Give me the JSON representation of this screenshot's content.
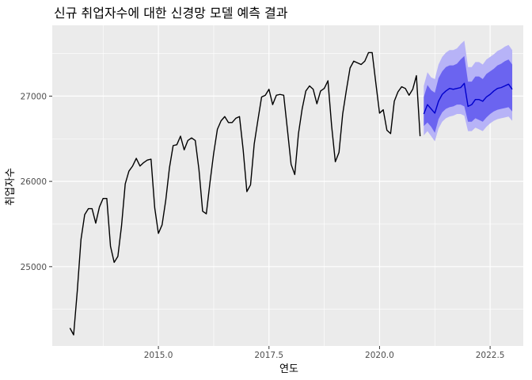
{
  "chart_data": {
    "type": "line",
    "title": "신규 취업자수에 대한 신경망 모델 예측 결과",
    "xlabel": "연도",
    "ylabel": "취업자수",
    "xlim": [
      2012.6,
      2023.25
    ],
    "ylim": [
      24070,
      27830
    ],
    "x_ticks": [
      2015,
      2017.5,
      2020,
      2022.5
    ],
    "x_tick_labels": [
      "2015.0",
      "2017.5",
      "2020.0",
      "2022.5"
    ],
    "y_ticks": [
      25000,
      26000,
      27000
    ],
    "y_tick_labels": [
      "25000",
      "26000",
      "27000"
    ],
    "grid": true,
    "legend": "none",
    "colors": {
      "panel": "#ebebeb",
      "grid": "#ffffff",
      "actual_line": "#000000",
      "forecast_line": "#0000cc",
      "band_80": "#6b64f0",
      "band_95": "#b7b3f7"
    },
    "series": [
      {
        "role": "actual",
        "start": [
          2013,
          1
        ],
        "frequency": 12,
        "values": [
          24280,
          24200,
          24720,
          25320,
          25610,
          25680,
          25680,
          25510,
          25700,
          25800,
          25800,
          25240,
          25050,
          25120,
          25480,
          25970,
          26120,
          26180,
          26270,
          26180,
          26220,
          26250,
          26260,
          25690,
          25390,
          25490,
          25780,
          26160,
          26420,
          26430,
          26530,
          26370,
          26480,
          26510,
          26480,
          26140,
          25650,
          25620,
          25990,
          26330,
          26610,
          26710,
          26760,
          26690,
          26690,
          26740,
          26760,
          26370,
          25880,
          25960,
          26440,
          26720,
          26990,
          27010,
          27080,
          26900,
          27010,
          27020,
          27010,
          26610,
          26200,
          26080,
          26560,
          26850,
          27060,
          27120,
          27080,
          26910,
          27060,
          27090,
          27180,
          26650,
          26230,
          26340,
          26790,
          27070,
          27330,
          27410,
          27390,
          27370,
          27410,
          27510,
          27510,
          27150,
          26800,
          26840,
          26600,
          26560,
          26940,
          27050,
          27110,
          27090,
          27010,
          27080,
          27240,
          26530
        ]
      },
      {
        "role": "forecast",
        "start": [
          2021,
          1
        ],
        "frequency": 12,
        "values": [
          26790,
          26900,
          26850,
          26800,
          26940,
          27020,
          27060,
          27090,
          27080,
          27090,
          27100,
          27150,
          26880,
          26900,
          26960,
          26960,
          26940,
          26990,
          27020,
          27060,
          27090,
          27100,
          27120,
          27140,
          27080
        ],
        "lo80": [
          26650,
          26690,
          26640,
          26570,
          26730,
          26810,
          26850,
          26870,
          26880,
          26900,
          26900,
          26880,
          26700,
          26700,
          26740,
          26720,
          26700,
          26750,
          26790,
          26820,
          26840,
          26850,
          26860,
          26870,
          26820
        ],
        "hi80": [
          26990,
          27130,
          27070,
          27040,
          27210,
          27290,
          27340,
          27360,
          27360,
          27380,
          27430,
          27470,
          27170,
          27170,
          27230,
          27230,
          27200,
          27260,
          27290,
          27320,
          27360,
          27380,
          27410,
          27430,
          27370
        ],
        "lo95": [
          26540,
          26590,
          26530,
          26470,
          26620,
          26700,
          26740,
          26760,
          26770,
          26790,
          26790,
          26770,
          26590,
          26590,
          26630,
          26610,
          26590,
          26640,
          26680,
          26710,
          26730,
          26740,
          26750,
          26760,
          26710
        ],
        "hi95": [
          27120,
          27280,
          27220,
          27200,
          27370,
          27460,
          27510,
          27540,
          27540,
          27560,
          27610,
          27650,
          27340,
          27340,
          27400,
          27400,
          27370,
          27430,
          27460,
          27490,
          27530,
          27550,
          27580,
          27600,
          27540
        ]
      }
    ]
  }
}
